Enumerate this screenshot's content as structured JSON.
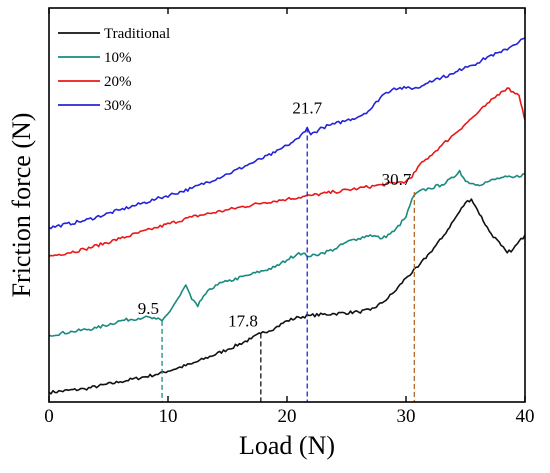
{
  "chart_data": {
    "type": "line",
    "xlabel": "Load (N)",
    "ylabel": "Friction force (N)",
    "xlim": [
      0,
      40
    ],
    "ylim": [
      0,
      100
    ],
    "xticks": [
      0,
      10,
      20,
      30,
      40
    ],
    "xtick_labels": [
      "0",
      "10",
      "20",
      "30",
      "40"
    ],
    "y_tick_labels_shown": false,
    "grid": false,
    "legend_position": "top-left",
    "series": [
      {
        "name": "Traditional",
        "color": "#111111",
        "x": [
          0,
          3,
          6,
          9,
          12,
          15,
          17,
          17.8,
          19,
          20,
          21,
          22,
          24,
          26,
          27,
          28,
          29,
          30,
          31,
          32,
          33,
          34,
          35,
          35.5,
          36,
          37,
          38,
          38.5,
          39,
          40
        ],
        "y": [
          1,
          2,
          4,
          6,
          9,
          13,
          16,
          17.5,
          19,
          21,
          22,
          22.5,
          23,
          23.5,
          24,
          26,
          29,
          33,
          36,
          40,
          44,
          49,
          54,
          55,
          52,
          46,
          42,
          40,
          41,
          45
        ]
      },
      {
        "name": "10%",
        "color": "#1a8a80",
        "x": [
          0,
          2,
          4,
          6,
          8,
          9,
          9.5,
          10,
          11,
          11.5,
          12,
          12.5,
          13,
          14,
          15,
          17,
          19,
          20,
          21,
          22,
          23,
          24,
          25,
          26,
          27,
          28,
          29,
          30,
          30.5,
          31,
          32,
          33,
          34,
          34.5,
          35,
          36,
          37,
          38,
          39,
          40
        ],
        "y": [
          17,
          18,
          19,
          21,
          22,
          21.5,
          21,
          23,
          28,
          31,
          27,
          25,
          28,
          31,
          32,
          34,
          36,
          38,
          40,
          39,
          40,
          41,
          43,
          44,
          45,
          44,
          46,
          50,
          55,
          57,
          58,
          59,
          61,
          63,
          60,
          59,
          60,
          61,
          61,
          62
        ]
      },
      {
        "name": "20%",
        "color": "#e8191a",
        "x": [
          0,
          3,
          6,
          9,
          12,
          15,
          18,
          20,
          22,
          24,
          26,
          28,
          30,
          30.5,
          31,
          32,
          33,
          34,
          35,
          36,
          37,
          38,
          38.5,
          39,
          39.5,
          39.8,
          40
        ],
        "y": [
          39,
          41,
          44,
          47,
          50,
          52,
          54,
          55,
          56,
          57,
          58,
          59,
          60,
          61,
          64,
          67,
          70,
          73,
          76,
          79,
          82,
          85,
          86,
          85,
          84,
          80,
          77
        ]
      },
      {
        "name": "30%",
        "color": "#2424d8",
        "x": [
          0,
          3,
          6,
          9,
          12,
          15,
          17,
          19,
          20,
          21,
          21.7,
          22,
          23,
          24,
          25,
          26,
          27,
          28,
          29,
          30,
          31,
          32,
          33,
          34,
          35,
          36,
          37,
          38,
          39,
          40
        ],
        "y": [
          47,
          49,
          52,
          55,
          58,
          62,
          65,
          68,
          70,
          72,
          75,
          73,
          75,
          76,
          77,
          78,
          80,
          84,
          86,
          86,
          86,
          88,
          89,
          90,
          92,
          93,
          95,
          96,
          98,
          100
        ]
      }
    ],
    "annotations": [
      {
        "label": "9.5",
        "x": 9.5,
        "y_top": 21,
        "color": "#1a8a80",
        "anchor": "upper-left"
      },
      {
        "label": "17.8",
        "x": 17.8,
        "y_top": 17.5,
        "color": "#111111",
        "anchor": "upper-left"
      },
      {
        "label": "21.7",
        "x": 21.7,
        "y_top": 75,
        "color": "#2424d8",
        "anchor": "above"
      },
      {
        "label": "30.7",
        "x": 30.7,
        "y_top": 57,
        "color": "#b06a2e",
        "anchor": "upper-left"
      }
    ]
  }
}
